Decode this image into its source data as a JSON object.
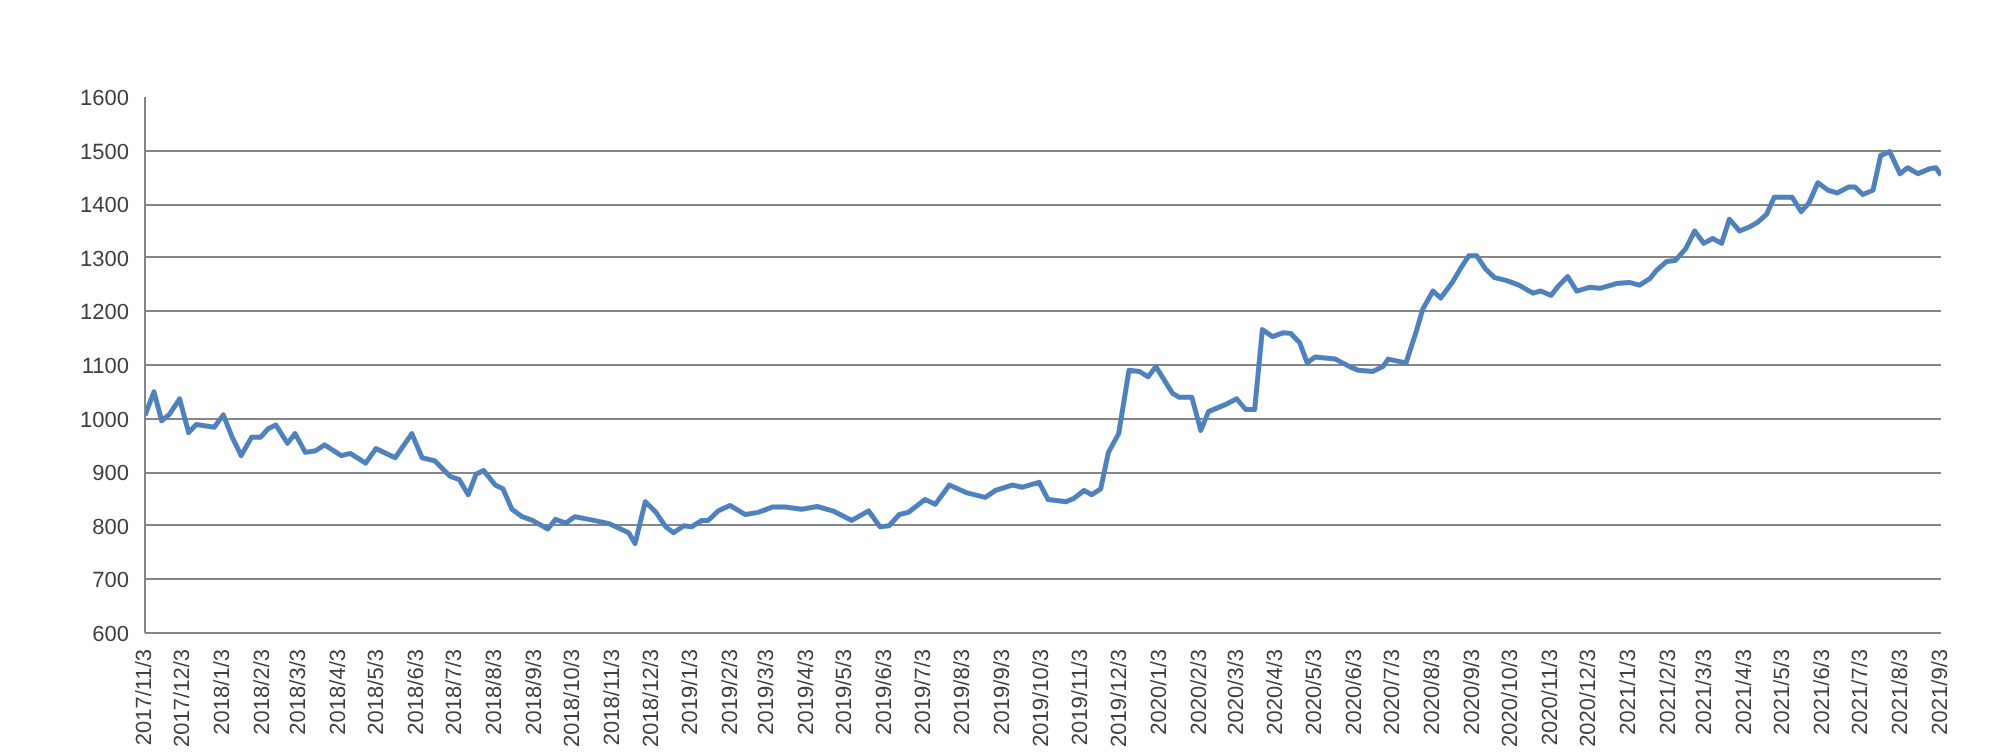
{
  "chart_data": {
    "type": "line",
    "grid": "y",
    "line_style": "solid",
    "marker": "none",
    "ylim": [
      600,
      1600
    ],
    "yticks": [
      600,
      700,
      800,
      900,
      1000,
      1100,
      1200,
      1300,
      1400,
      1500,
      1600
    ],
    "xlim": [
      "2017-11-03",
      "2021-09-03"
    ],
    "xticks": [
      {
        "value": "2017-11-03",
        "label": "2017/11/3"
      },
      {
        "value": "2017-12-03",
        "label": "2017/12/3"
      },
      {
        "value": "2018-01-03",
        "label": "2018/1/3"
      },
      {
        "value": "2018-02-03",
        "label": "2018/2/3"
      },
      {
        "value": "2018-03-03",
        "label": "2018/3/3"
      },
      {
        "value": "2018-04-03",
        "label": "2018/4/3"
      },
      {
        "value": "2018-05-03",
        "label": "2018/5/3"
      },
      {
        "value": "2018-06-03",
        "label": "2018/6/3"
      },
      {
        "value": "2018-07-03",
        "label": "2018/7/3"
      },
      {
        "value": "2018-08-03",
        "label": "2018/8/3"
      },
      {
        "value": "2018-09-03",
        "label": "2018/9/3"
      },
      {
        "value": "2018-10-03",
        "label": "2018/10/3"
      },
      {
        "value": "2018-11-03",
        "label": "2018/11/3"
      },
      {
        "value": "2018-12-03",
        "label": "2018/12/3"
      },
      {
        "value": "2019-01-03",
        "label": "2019/1/3"
      },
      {
        "value": "2019-02-03",
        "label": "2019/2/3"
      },
      {
        "value": "2019-03-03",
        "label": "2019/3/3"
      },
      {
        "value": "2019-04-03",
        "label": "2019/4/3"
      },
      {
        "value": "2019-05-03",
        "label": "2019/5/3"
      },
      {
        "value": "2019-06-03",
        "label": "2019/6/3"
      },
      {
        "value": "2019-07-03",
        "label": "2019/7/3"
      },
      {
        "value": "2019-08-03",
        "label": "2019/8/3"
      },
      {
        "value": "2019-09-03",
        "label": "2019/9/3"
      },
      {
        "value": "2019-10-03",
        "label": "2019/10/3"
      },
      {
        "value": "2019-11-03",
        "label": "2019/11/3"
      },
      {
        "value": "2019-12-03",
        "label": "2019/12/3"
      },
      {
        "value": "2020-01-03",
        "label": "2020/1/3"
      },
      {
        "value": "2020-02-03",
        "label": "2020/2/3"
      },
      {
        "value": "2020-03-03",
        "label": "2020/3/3"
      },
      {
        "value": "2020-04-03",
        "label": "2020/4/3"
      },
      {
        "value": "2020-05-03",
        "label": "2020/5/3"
      },
      {
        "value": "2020-06-03",
        "label": "2020/6/3"
      },
      {
        "value": "2020-07-03",
        "label": "2020/7/3"
      },
      {
        "value": "2020-08-03",
        "label": "2020/8/3"
      },
      {
        "value": "2020-09-03",
        "label": "2020/9/3"
      },
      {
        "value": "2020-10-03",
        "label": "2020/10/3"
      },
      {
        "value": "2020-11-03",
        "label": "2020/11/3"
      },
      {
        "value": "2020-12-03",
        "label": "2020/12/3"
      },
      {
        "value": "2021-01-03",
        "label": "2021/1/3"
      },
      {
        "value": "2021-02-03",
        "label": "2021/2/3"
      },
      {
        "value": "2021-03-03",
        "label": "2021/3/3"
      },
      {
        "value": "2021-04-03",
        "label": "2021/4/3"
      },
      {
        "value": "2021-05-03",
        "label": "2021/5/3"
      },
      {
        "value": "2021-06-03",
        "label": "2021/6/3"
      },
      {
        "value": "2021-07-03",
        "label": "2021/7/3"
      },
      {
        "value": "2021-08-03",
        "label": "2021/8/3"
      },
      {
        "value": "2021-09-03",
        "label": "2021/9/3"
      }
    ],
    "x": [
      "2017-11-03",
      "2017-11-10",
      "2017-11-16",
      "2017-11-22",
      "2017-11-30",
      "2017-12-07",
      "2017-12-13",
      "2017-12-27",
      "2018-01-03",
      "2018-01-10",
      "2018-01-17",
      "2018-01-25",
      "2018-02-01",
      "2018-02-07",
      "2018-02-13",
      "2018-02-22",
      "2018-02-28",
      "2018-03-08",
      "2018-03-16",
      "2018-03-23",
      "2018-04-05",
      "2018-04-12",
      "2018-04-24",
      "2018-05-02",
      "2018-05-17",
      "2018-05-30",
      "2018-06-07",
      "2018-06-17",
      "2018-06-29",
      "2018-07-06",
      "2018-07-13",
      "2018-07-19",
      "2018-07-25",
      "2018-08-03",
      "2018-08-09",
      "2018-08-16",
      "2018-08-24",
      "2018-09-01",
      "2018-09-13",
      "2018-09-19",
      "2018-09-27",
      "2018-10-04",
      "2018-10-15",
      "2018-10-31",
      "2018-11-15",
      "2018-11-20",
      "2018-11-28",
      "2018-12-06",
      "2018-12-14",
      "2018-12-20",
      "2018-12-28",
      "2019-01-03",
      "2019-01-11",
      "2019-01-16",
      "2019-01-24",
      "2019-02-02",
      "2019-02-14",
      "2019-02-24",
      "2019-03-07",
      "2019-03-17",
      "2019-03-30",
      "2019-04-11",
      "2019-04-23",
      "2019-05-08",
      "2019-05-21",
      "2019-05-30",
      "2019-06-06",
      "2019-06-14",
      "2019-06-21",
      "2019-07-04",
      "2019-07-12",
      "2019-07-23",
      "2019-08-05",
      "2019-08-20",
      "2019-08-28",
      "2019-09-10",
      "2019-09-18",
      "2019-10-01",
      "2019-10-08",
      "2019-10-22",
      "2019-10-28",
      "2019-11-05",
      "2019-11-11",
      "2019-11-18",
      "2019-11-24",
      "2019-12-02",
      "2019-12-10",
      "2019-12-18",
      "2019-12-25",
      "2019-12-31",
      "2020-01-13",
      "2020-01-18",
      "2020-01-28",
      "2020-02-04",
      "2020-02-10",
      "2020-02-23",
      "2020-03-03",
      "2020-03-10",
      "2020-03-17",
      "2020-03-23",
      "2020-03-31",
      "2020-04-08",
      "2020-04-14",
      "2020-04-21",
      "2020-04-27",
      "2020-05-03",
      "2020-05-19",
      "2020-05-30",
      "2020-06-06",
      "2020-06-17",
      "2020-06-25",
      "2020-06-29",
      "2020-07-13",
      "2020-07-21",
      "2020-07-26",
      "2020-08-03",
      "2020-08-09",
      "2020-08-18",
      "2020-08-26",
      "2020-08-31",
      "2020-09-06",
      "2020-09-13",
      "2020-09-20",
      "2020-09-29",
      "2020-10-09",
      "2020-10-20",
      "2020-10-26",
      "2020-11-03",
      "2020-11-09",
      "2020-11-16",
      "2020-11-23",
      "2020-12-03",
      "2020-12-11",
      "2020-12-24",
      "2021-01-03",
      "2021-01-11",
      "2021-01-19",
      "2021-01-24",
      "2021-02-01",
      "2021-02-08",
      "2021-02-16",
      "2021-02-23",
      "2021-03-02",
      "2021-03-09",
      "2021-03-16",
      "2021-03-22",
      "2021-03-30",
      "2021-04-07",
      "2021-04-13",
      "2021-04-20",
      "2021-04-26",
      "2021-05-04",
      "2021-05-10",
      "2021-05-17",
      "2021-05-23",
      "2021-05-30",
      "2021-06-07",
      "2021-06-14",
      "2021-06-23",
      "2021-06-28",
      "2021-07-04",
      "2021-07-12",
      "2021-07-18",
      "2021-07-25",
      "2021-08-02",
      "2021-08-08",
      "2021-08-16",
      "2021-08-25",
      "2021-08-30",
      "2021-09-03"
    ],
    "series": [
      {
        "color": "#4f81bd",
        "values": [
          1006,
          1050,
          996,
          1008,
          1037,
          974,
          989,
          984,
          1007,
          965,
          931,
          965,
          965,
          981,
          988,
          954,
          972,
          937,
          940,
          951,
          931,
          935,
          917,
          944,
          927,
          972,
          927,
          921,
          892,
          886,
          858,
          896,
          903,
          876,
          869,
          831,
          817,
          810,
          794,
          812,
          805,
          817,
          812,
          804,
          787,
          767,
          845,
          826,
          798,
          787,
          800,
          798,
          810,
          810,
          828,
          838,
          821,
          825,
          835,
          835,
          831,
          836,
          828,
          810,
          828,
          798,
          800,
          821,
          825,
          849,
          840,
          876,
          862,
          853,
          866,
          876,
          872,
          881,
          849,
          845,
          851,
          866,
          858,
          869,
          937,
          972,
          1090,
          1088,
          1078,
          1097,
          1047,
          1040,
          1040,
          978,
          1013,
          1026,
          1037,
          1017,
          1017,
          1166,
          1153,
          1160,
          1159,
          1142,
          1104,
          1115,
          1111,
          1097,
          1090,
          1088,
          1097,
          1111,
          1104,
          1163,
          1204,
          1238,
          1225,
          1254,
          1286,
          1304,
          1304,
          1279,
          1263,
          1258,
          1249,
          1234,
          1238,
          1230,
          1248,
          1265,
          1238,
          1245,
          1243,
          1252,
          1254,
          1249,
          1261,
          1276,
          1293,
          1295,
          1317,
          1350,
          1327,
          1336,
          1327,
          1372,
          1350,
          1358,
          1366,
          1381,
          1413,
          1413,
          1413,
          1386,
          1402,
          1440,
          1426,
          1421,
          1432,
          1432,
          1418,
          1426,
          1491,
          1498,
          1457,
          1468,
          1457,
          1466,
          1468,
          1454
        ]
      }
    ]
  }
}
